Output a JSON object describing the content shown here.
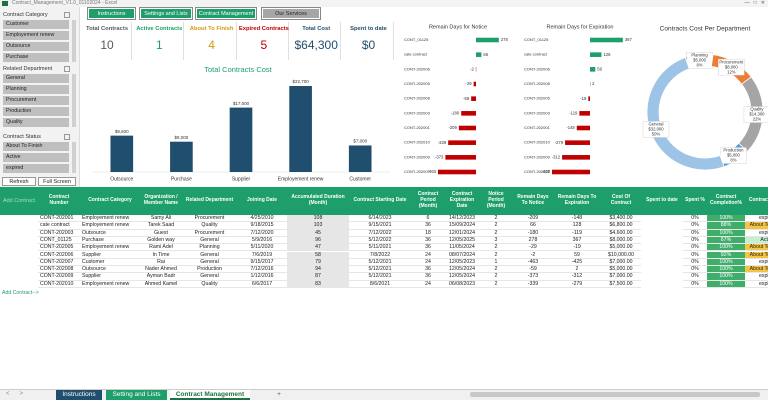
{
  "window": {
    "title": "Contract_Management_V1.0_01102024 - Excel"
  },
  "nav": [
    "Instructions",
    "Settings and Lists",
    "Contract Management",
    "Our Services"
  ],
  "slicers": [
    {
      "title": "Contract Category",
      "items": [
        "Customer",
        "Employement renew",
        "Outsource",
        "Purchase"
      ]
    },
    {
      "title": "Related Department",
      "items": [
        "General",
        "Planning",
        "Procurement",
        "Production",
        "Quality"
      ]
    },
    {
      "title": "Contract Status",
      "items": [
        "About To Finish",
        "Active",
        "expired"
      ]
    }
  ],
  "buttons": [
    "Refresh",
    "Full Screen"
  ],
  "kpis": [
    {
      "label": "Total Contracts",
      "value": 10,
      "color": "#595959"
    },
    {
      "label": "Active Contracts",
      "value": 1,
      "color": "#1e9e6a"
    },
    {
      "label": "About To Finish",
      "value": 4,
      "color": "#d39b0b"
    },
    {
      "label": "Expired Contracts",
      "value": 5,
      "color": "#c00000"
    },
    {
      "label": "Total Cost",
      "value": "$64,300",
      "color": "#1f4e6e"
    },
    {
      "label": "Spent to date",
      "value": "$0",
      "color": "#1f4e6e"
    }
  ],
  "chart_data": [
    {
      "type": "bar",
      "title": "Total Contracts Cost",
      "categories": [
        "Outsource",
        "Purchase",
        "Supplier",
        "Employement renew",
        "Customer"
      ],
      "values": [
        9600,
        8000,
        17000,
        22700,
        7000
      ],
      "value_labels": [
        "$9,600",
        "$8,000",
        "$17,000",
        "$22,700",
        "$7,000"
      ],
      "color": "#1f4e6e"
    },
    {
      "type": "hbar",
      "title": "Remain Days for Notice",
      "categories": [
        "CONT_01125",
        "cate contract",
        "CONT-202006",
        "CONT-202005",
        "CONT-202008",
        "CONT-202003",
        "CONT-202001",
        "CONT-202010",
        "CONT-202009",
        "CONT-202007"
      ],
      "values": [
        278,
        66,
        -2,
        -29,
        -59,
        -180,
        -209,
        -339,
        -373,
        -463
      ],
      "color": "#1e9e6a",
      "negative_color": "#c00000"
    },
    {
      "type": "hbar",
      "title": "Remain Days for Expiration",
      "categories": [
        "CONT_01125",
        "cate contract",
        "CONT-202006",
        "CONT-202008",
        "CONT-202005",
        "CONT-202003",
        "CONT-202001",
        "CONT-202010",
        "CONT-202009",
        "CONT-202007"
      ],
      "values": [
        367,
        128,
        59,
        2,
        -19,
        -119,
        -148,
        -279,
        -312,
        -425
      ],
      "color": "#1e9e6a",
      "negative_color": "#c00000"
    },
    {
      "type": "pie",
      "title": "Contracts Cost Per Department",
      "categories": [
        "Planning",
        "Procurement",
        "Quality",
        "Production",
        "General"
      ],
      "values": [
        5000,
        8000,
        14300,
        5000,
        32000
      ],
      "value_labels": [
        "$5,000",
        "$8,000",
        "$14,300",
        "$5,000",
        "$32,000"
      ],
      "percent_labels": [
        "8%",
        "12%",
        "22%",
        "8%",
        "50%"
      ],
      "colors": [
        "#4472c4",
        "#ed7d31",
        "#a5a5a5",
        "#5b9bd5",
        "#9dc3e6"
      ]
    }
  ],
  "table": {
    "add_label": "Add Contract",
    "header": [
      "Contract Number",
      "Contract Category",
      "Organization / Member Name",
      "Related Department",
      "Joining Date",
      "Accumulated Duration (Month)",
      "Contract Starting Date",
      "Contract Period (Month)",
      "Contract Expiration Date",
      "Notice Period (Month)",
      "Remain Days To Notice",
      "Remain Days To Expiration",
      "Cost Of Contract",
      "Spent to date",
      "Spent %",
      "Contract Completion%",
      "Contract Status"
    ],
    "rows": [
      [
        "CONT-202001",
        "Employement renew",
        "Samy Ali",
        "Procurement",
        "4/25/2010",
        "108",
        "6/14/2023",
        "6",
        "14/12/2023",
        "2",
        "-209",
        "-148",
        "$3,400.00",
        null,
        "0%",
        "100%",
        "expired"
      ],
      [
        "cate contract",
        "Employement renew",
        "Tarek Saad",
        "Quality",
        "9/18/2015",
        "103",
        "9/15/2021",
        "36",
        "15/09/2024",
        "2",
        "66",
        "128",
        "$6,800.00",
        null,
        "0%",
        "88%",
        "About To Finish"
      ],
      [
        "CONT-202003",
        "Outsource",
        "Guest",
        "Procurement",
        "7/12/2020",
        "45",
        "7/12/2022",
        "18",
        "12/01/2024",
        "2",
        "-180",
        "-119",
        "$4,600.00",
        null,
        "0%",
        "100%",
        "expired"
      ],
      [
        "CONT_01125",
        "Purchase",
        "Golden way",
        "General",
        "5/9/2016",
        "96",
        "5/12/2022",
        "36",
        "12/05/2025",
        "3",
        "278",
        "367",
        "$8,000.00",
        null,
        "0%",
        "67%",
        "Active"
      ],
      [
        "CONT-202005",
        "Employement renew",
        "Rami Adel",
        "Planning",
        "5/11/2020",
        "47",
        "5/11/2021",
        "36",
        "11/05/2024",
        "2",
        "-29",
        "-19",
        "$5,000.00",
        null,
        "0%",
        "100%",
        "About To Finish"
      ],
      [
        "CONT-202006",
        "Supplier",
        "In Time",
        "General",
        "7/6/2019",
        "58",
        "7/8/2022",
        "24",
        "08/07/2024",
        "2",
        "-2",
        "59",
        "$10,000.00",
        null,
        "0%",
        "92%",
        "About To Finish"
      ],
      [
        "CONT-202007",
        "Customer",
        "Rai",
        "General",
        "9/15/2017",
        "79",
        "5/12/2021",
        "24",
        "12/05/2023",
        "1",
        "-463",
        "-425",
        "$7,000.00",
        null,
        "0%",
        "100%",
        "expired"
      ],
      [
        "CONT-202008",
        "Outsource",
        "Nader Ahmed",
        "Production",
        "7/12/2016",
        "94",
        "5/12/2021",
        "36",
        "12/05/2024",
        "2",
        "-59",
        "2",
        "$5,000.00",
        null,
        "0%",
        "100%",
        "About To Finish"
      ],
      [
        "CONT-202009",
        "Supplier",
        "Ayman Badr",
        "General",
        "1/12/2016",
        "87",
        "5/12/2021",
        "36",
        "12/05/2024",
        "2",
        "-373",
        "-312",
        "$7,000.00",
        null,
        "0%",
        "100%",
        "expired"
      ],
      [
        "CONT-202010",
        "Employement renew",
        "Ahmed Kamel",
        "Quality",
        "6/6/2017",
        "83",
        "8/6/2021",
        "24",
        "06/08/2023",
        "2",
        "-339",
        "-279",
        "$7,500.00",
        null,
        "0%",
        "100%",
        "expired"
      ]
    ]
  },
  "add_link": "Add Contract-->",
  "tabs": [
    "Instructions",
    "Setting and Lists",
    "Contract Management",
    "+"
  ]
}
